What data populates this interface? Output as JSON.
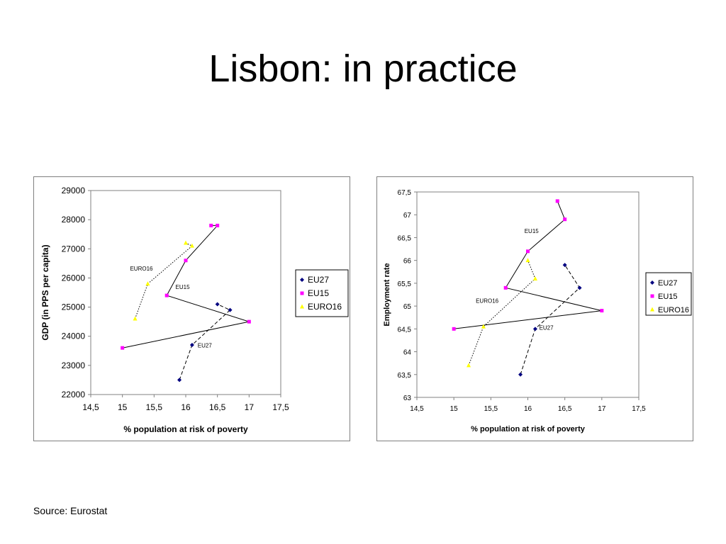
{
  "slide": {
    "title": "Lisbon: in practice",
    "source": "Source: Eurostat"
  },
  "colors": {
    "EU27": "#000080",
    "EU15": "#ff00ff",
    "EURO16": "#ffff00",
    "line": "#000000",
    "axis": "#808080"
  },
  "chart_data": [
    {
      "type": "scatter",
      "title": "",
      "xlabel": "% population at risk of poverty",
      "ylabel": "GDP (in PPS per capita)",
      "xlim": [
        14.5,
        17.5
      ],
      "ylim": [
        22000,
        29000
      ],
      "xticks": [
        "14,5",
        "15",
        "15,5",
        "16",
        "16,5",
        "17",
        "17,5"
      ],
      "yticks": [
        "22000",
        "23000",
        "24000",
        "25000",
        "26000",
        "27000",
        "28000",
        "29000"
      ],
      "legend": {
        "position": "right",
        "entries": [
          "EU27",
          "EU15",
          "EURO16"
        ]
      },
      "series": [
        {
          "name": "EU27",
          "dash": "dashed",
          "points": [
            [
              15.9,
              22500
            ],
            [
              16.1,
              23700
            ],
            [
              16.7,
              24900
            ],
            [
              16.5,
              25100
            ]
          ]
        },
        {
          "name": "EU15",
          "dash": "solid",
          "points": [
            [
              15.0,
              23600
            ],
            [
              17.0,
              24500
            ],
            [
              15.7,
              25400
            ],
            [
              16.0,
              26600
            ],
            [
              16.5,
              27800
            ],
            [
              16.4,
              27800
            ]
          ]
        },
        {
          "name": "EURO16",
          "dash": "dotted",
          "points": [
            [
              15.2,
              24600
            ],
            [
              15.4,
              25800
            ],
            [
              16.1,
              27100
            ],
            [
              16.0,
              27200
            ]
          ]
        }
      ],
      "annotations": [
        {
          "text": "EURO16",
          "x": 15.3,
          "y": 26250
        },
        {
          "text": "EU15",
          "x": 15.95,
          "y": 25620
        },
        {
          "text": "EU27",
          "x": 16.3,
          "y": 23620
        }
      ]
    },
    {
      "type": "scatter",
      "title": "",
      "xlabel": "% population at risk of poverty",
      "ylabel": "Employment rate",
      "xlim": [
        14.5,
        17.5
      ],
      "ylim": [
        63,
        67.5
      ],
      "xticks": [
        "14,5",
        "15",
        "15,5",
        "16",
        "16,5",
        "17",
        "17,5"
      ],
      "yticks": [
        "63",
        "63,5",
        "64",
        "64,5",
        "65",
        "65,5",
        "66",
        "66,5",
        "67",
        "67,5"
      ],
      "legend": {
        "position": "right",
        "entries": [
          "EU27",
          "EU15",
          "EURO16"
        ]
      },
      "series": [
        {
          "name": "EU27",
          "dash": "dashed",
          "points": [
            [
              15.9,
              63.5
            ],
            [
              16.1,
              64.5
            ],
            [
              16.7,
              65.4
            ],
            [
              16.5,
              65.9
            ]
          ]
        },
        {
          "name": "EU15",
          "dash": "solid",
          "points": [
            [
              15.0,
              64.5
            ],
            [
              17.0,
              64.9
            ],
            [
              15.7,
              65.4
            ],
            [
              16.0,
              66.2
            ],
            [
              16.5,
              66.9
            ],
            [
              16.4,
              67.3
            ]
          ]
        },
        {
          "name": "EURO16",
          "dash": "dotted",
          "points": [
            [
              15.2,
              63.7
            ],
            [
              15.4,
              64.55
            ],
            [
              16.1,
              65.6
            ],
            [
              16.0,
              66.0
            ]
          ]
        }
      ],
      "annotations": [
        {
          "text": "EU15",
          "x": 16.05,
          "y": 66.6
        },
        {
          "text": "EURO16",
          "x": 15.45,
          "y": 65.07
        },
        {
          "text": "EU27",
          "x": 16.25,
          "y": 64.48
        }
      ]
    }
  ]
}
